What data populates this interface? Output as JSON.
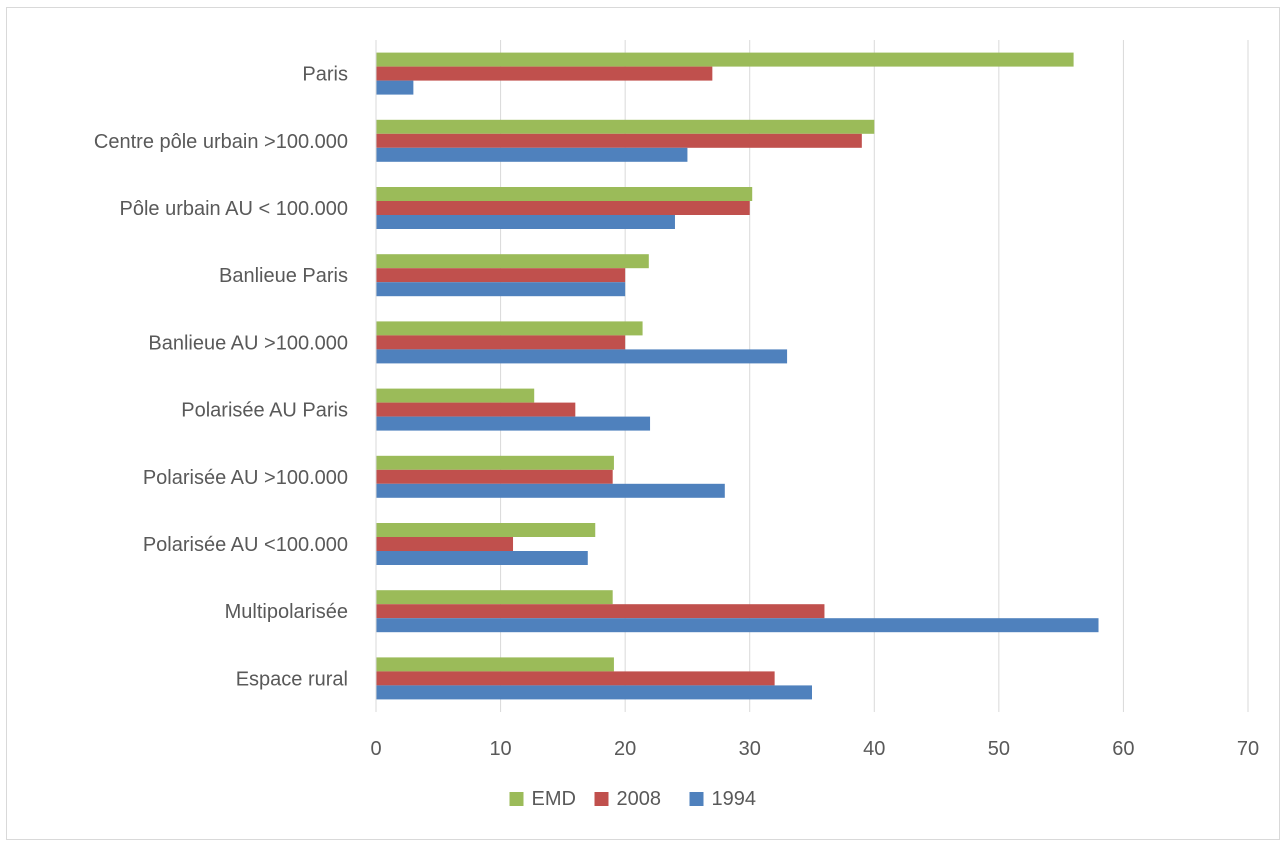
{
  "chart_data": {
    "type": "bar",
    "orientation": "horizontal",
    "categories": [
      "Paris",
      "Centre pôle urbain >100.000",
      "Pôle urbain AU < 100.000",
      "Banlieue Paris",
      "Banlieue AU >100.000",
      "Polarisée AU Paris",
      "Polarisée AU >100.000",
      "Polarisée AU <100.000",
      "Multipolarisée",
      "Espace rural"
    ],
    "series": [
      {
        "name": "EMD",
        "color": "#9bbb59",
        "values": [
          56,
          40,
          30.2,
          21.9,
          21.4,
          12.7,
          19.1,
          17.6,
          19,
          19.1
        ]
      },
      {
        "name": "2008",
        "color": "#c0504d",
        "values": [
          27,
          39,
          30,
          20,
          20,
          16,
          19,
          11,
          36,
          32
        ]
      },
      {
        "name": "1994",
        "color": "#4f81bd",
        "values": [
          3,
          25,
          24,
          20,
          33,
          22,
          28,
          17,
          58,
          35
        ]
      }
    ],
    "xlim": [
      0,
      70
    ],
    "xticks": [
      "0",
      "10",
      "20",
      "30",
      "40",
      "50",
      "60",
      "70"
    ],
    "grid": true,
    "legend_position": "bottom",
    "title": "",
    "xlabel": "",
    "ylabel": ""
  }
}
